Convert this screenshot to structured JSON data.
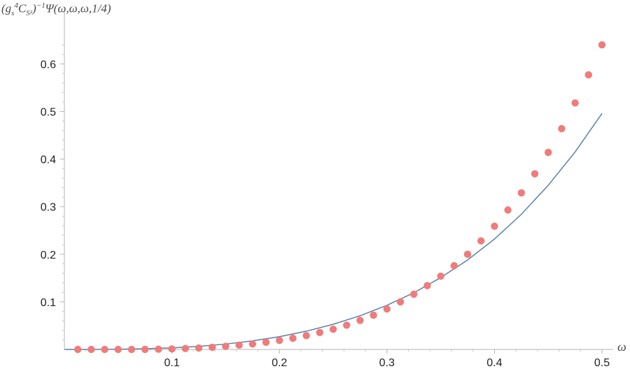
{
  "chart_data": {
    "type": "line",
    "ylabel_parts": {
      "open": "(g",
      "s_sub": "s",
      "four_sup": "4",
      "c": "C",
      "s2_sub": "S²",
      "close": ")",
      "minus_one_sup": "−1",
      "rest": "Ψ(ω,ω,ω,1/4)"
    },
    "xlabel": "ω",
    "xlim": [
      0.0,
      0.5
    ],
    "ylim": [
      0.0,
      0.655
    ],
    "x_ticks": [
      "0.1",
      "0.2",
      "0.3",
      "0.4",
      "0.5"
    ],
    "x_tick_values": [
      0.1,
      0.2,
      0.3,
      0.4,
      0.5
    ],
    "y_ticks": [
      "0.1",
      "0.2",
      "0.3",
      "0.4",
      "0.5",
      "0.6"
    ],
    "y_tick_values": [
      0.1,
      0.2,
      0.3,
      0.4,
      0.5,
      0.6
    ],
    "grid": false,
    "series": [
      {
        "kind": "curve",
        "color": "#5b7fad",
        "x": [
          0.0,
          0.025,
          0.05,
          0.075,
          0.1,
          0.125,
          0.15,
          0.175,
          0.2,
          0.225,
          0.25,
          0.275,
          0.3,
          0.325,
          0.35,
          0.375,
          0.4,
          0.425,
          0.45,
          0.475,
          0.5
        ],
        "y": [
          0.0,
          4e-05,
          0.0004,
          0.0014,
          0.0033,
          0.0065,
          0.0113,
          0.018,
          0.0268,
          0.0383,
          0.0529,
          0.0708,
          0.0928,
          0.119,
          0.151,
          0.188,
          0.232,
          0.284,
          0.345,
          0.415,
          0.496
        ]
      },
      {
        "kind": "points",
        "color": "#f07b7b",
        "x": [
          0.0125,
          0.025,
          0.0375,
          0.05,
          0.0625,
          0.075,
          0.0875,
          0.1,
          0.1125,
          0.125,
          0.1375,
          0.15,
          0.1625,
          0.175,
          0.1875,
          0.2,
          0.2125,
          0.225,
          0.2375,
          0.25,
          0.2625,
          0.275,
          0.2875,
          0.3,
          0.3125,
          0.325,
          0.3375,
          0.35,
          0.3625,
          0.375,
          0.3875,
          0.4,
          0.4125,
          0.425,
          0.4375,
          0.45,
          0.4625,
          0.475,
          0.4875,
          0.5
        ],
        "y": [
          0.0,
          0.0,
          0.0,
          0.0,
          0.0,
          0.0001,
          0.0004,
          0.001,
          0.002,
          0.003,
          0.0045,
          0.0065,
          0.009,
          0.0115,
          0.015,
          0.019,
          0.0235,
          0.029,
          0.0355,
          0.0425,
          0.051,
          0.061,
          0.072,
          0.085,
          0.1,
          0.116,
          0.134,
          0.154,
          0.176,
          0.2,
          0.228,
          0.259,
          0.293,
          0.329,
          0.369,
          0.414,
          0.464,
          0.518,
          0.577,
          0.64
        ]
      }
    ]
  }
}
